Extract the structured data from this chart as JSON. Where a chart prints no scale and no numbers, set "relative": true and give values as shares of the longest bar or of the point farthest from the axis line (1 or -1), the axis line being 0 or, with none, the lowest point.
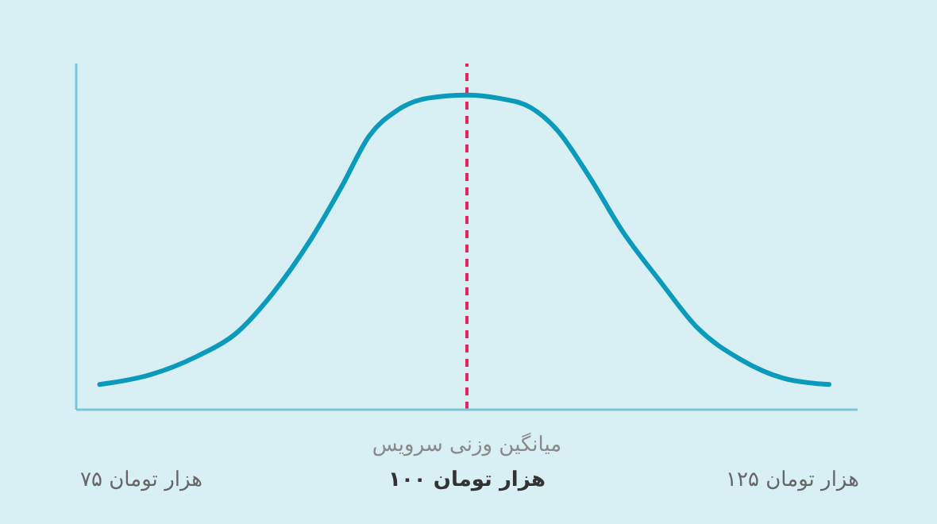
{
  "chart_data": {
    "type": "line",
    "relative": true,
    "x": [
      71.8,
      75.6,
      79.3,
      82.2,
      85.1,
      88.0,
      90.4,
      92.5,
      94.6,
      97.0,
      100,
      102.4,
      104.9,
      106.9,
      109.4,
      111.9,
      114.8,
      117.7,
      121.0,
      124.3,
      127.8
    ],
    "series": [
      {
        "color": "#0a9abb",
        "values": [
          0.08,
          0.11,
          0.17,
          0.24,
          0.37,
          0.54,
          0.71,
          0.87,
          0.95,
          0.99,
          1,
          0.99,
          0.96,
          0.89,
          0.74,
          0.57,
          0.41,
          0.26,
          0.16,
          0.1,
          0.08
        ]
      }
    ],
    "xlim": [
      70,
      130
    ],
    "xticks": [
      {
        "value": 75,
        "label": "۷۵ هزار تومان"
      },
      {
        "value": 100,
        "label": "۱۰۰ هزار تومان"
      },
      {
        "value": 125,
        "label": "۱۲۵ هزار تومان"
      }
    ],
    "ref_lines": [
      {
        "axis": "x",
        "value": 100,
        "label": "میانگین وزنی سرویس",
        "color": "#e8245a",
        "line_style": "dashed"
      }
    ],
    "grid": false,
    "legend": false,
    "marker": "none",
    "line_style": "solid"
  }
}
